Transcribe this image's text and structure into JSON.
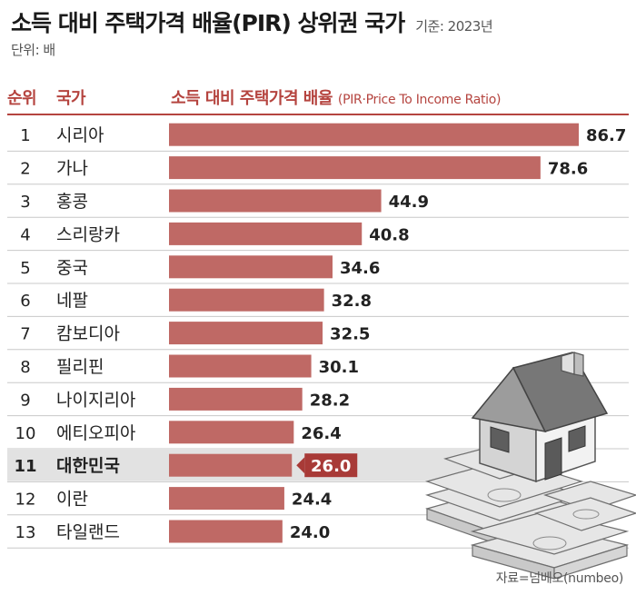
{
  "header": {
    "title": "소득 대비 주택가격 배율(PIR) 상위권 국가",
    "basis": "기준: 2023년",
    "unit": "단위: 배",
    "col_rank": "순위",
    "col_country": "국가",
    "col_value": "소득 대비 주택가격 배율",
    "col_value_sub": "(PIR·Price To Income Ratio)"
  },
  "footer": {
    "source": "자료=넘베오(numbeo)"
  },
  "colors": {
    "bar": "#bf6965",
    "highlight_bar": "#a83a37",
    "header": "#b5443f",
    "highlight_row": "#e2e2e2"
  },
  "illustration": {
    "icon": "house-on-money-icon"
  },
  "chart_data": {
    "type": "bar",
    "orientation": "horizontal",
    "title": "소득 대비 주택가격 배율(PIR) 상위권 국가",
    "ranks": [
      "1",
      "2",
      "3",
      "4",
      "5",
      "6",
      "7",
      "8",
      "9",
      "10",
      "11",
      "12",
      "13"
    ],
    "categories": [
      "시리아",
      "가나",
      "홍콩",
      "스리랑카",
      "중국",
      "네팔",
      "캄보디아",
      "필리핀",
      "나이지리아",
      "에티오피아",
      "대한민국",
      "이란",
      "타일랜드"
    ],
    "values": [
      86.7,
      78.6,
      44.9,
      40.8,
      34.6,
      32.8,
      32.5,
      30.1,
      28.2,
      26.4,
      26.0,
      24.4,
      24.0
    ],
    "highlight": "대한민국",
    "unit": "배",
    "grid": false,
    "legend": "none"
  }
}
